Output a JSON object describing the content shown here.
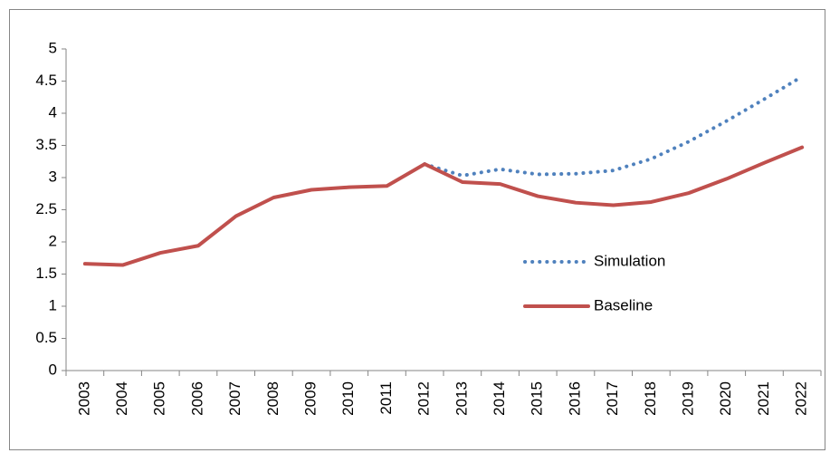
{
  "chart_data": {
    "type": "line",
    "categories": [
      "2003",
      "2004",
      "2005",
      "2006",
      "2007",
      "2008",
      "2009",
      "2010",
      "2011",
      "2012",
      "2013",
      "2014",
      "2015",
      "2016",
      "2017",
      "2018",
      "2019",
      "2020",
      "2021",
      "2022"
    ],
    "series": [
      {
        "name": "Simulation",
        "color": "#4f81bd",
        "dash": "dotted",
        "values": [
          null,
          null,
          null,
          null,
          null,
          null,
          null,
          null,
          null,
          3.21,
          3.03,
          3.13,
          3.05,
          3.06,
          3.11,
          3.29,
          3.56,
          3.88,
          4.22,
          4.57
        ]
      },
      {
        "name": "Baseline",
        "color": "#c0504d",
        "dash": "solid",
        "values": [
          1.66,
          1.64,
          1.83,
          1.94,
          2.4,
          2.69,
          2.81,
          2.85,
          2.87,
          3.21,
          2.93,
          2.9,
          2.71,
          2.61,
          2.57,
          2.62,
          2.76,
          2.98,
          3.23,
          3.47
        ]
      }
    ],
    "ylim": [
      0,
      5
    ],
    "yticks": [
      0,
      0.5,
      1,
      1.5,
      2,
      2.5,
      3,
      3.5,
      4,
      4.5,
      5
    ],
    "grid": false,
    "legend": "center-right"
  }
}
